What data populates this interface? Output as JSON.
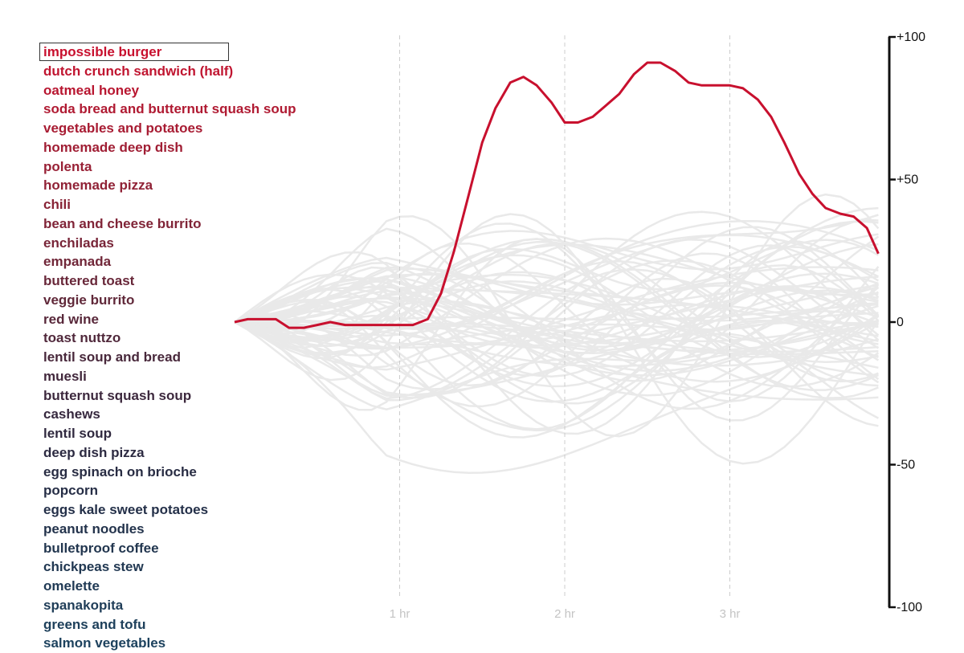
{
  "foods": [
    {
      "label": "impossible burger",
      "color": "#c8102e"
    },
    {
      "label": "dutch crunch sandwich (half)",
      "color": "#c01530"
    },
    {
      "label": "oatmeal honey",
      "color": "#b81630"
    },
    {
      "label": "soda bread and butternut squash soup",
      "color": "#b01a32"
    },
    {
      "label": "vegetables and potatoes",
      "color": "#a81c33"
    },
    {
      "label": "homemade deep dish",
      "color": "#a01e34"
    },
    {
      "label": "polenta",
      "color": "#982035"
    },
    {
      "label": "homemade pizza",
      "color": "#902236"
    },
    {
      "label": "chili",
      "color": "#882336"
    },
    {
      "label": "bean and cheese burrito",
      "color": "#802437"
    },
    {
      "label": "enchiladas",
      "color": "#782538"
    },
    {
      "label": "empanada",
      "color": "#702638"
    },
    {
      "label": "buttered toast",
      "color": "#682739"
    },
    {
      "label": "veggie burrito",
      "color": "#602839"
    },
    {
      "label": "red wine",
      "color": "#58283a"
    },
    {
      "label": "toast nuttzo",
      "color": "#50283b"
    },
    {
      "label": "lentil soup and bread",
      "color": "#48283b"
    },
    {
      "label": "muesli",
      "color": "#42283c"
    },
    {
      "label": "butternut squash soup",
      "color": "#3c283d"
    },
    {
      "label": "cashews",
      "color": "#36283e"
    },
    {
      "label": "lentil soup",
      "color": "#30293f"
    },
    {
      "label": "deep dish pizza",
      "color": "#2c2a41"
    },
    {
      "label": "egg spinach on brioche",
      "color": "#282c43"
    },
    {
      "label": "popcorn",
      "color": "#262e46"
    },
    {
      "label": "eggs kale sweet potatoes",
      "color": "#243049"
    },
    {
      "label": "peanut noodles",
      "color": "#23334c"
    },
    {
      "label": "bulletproof coffee",
      "color": "#22364f"
    },
    {
      "label": "chickpeas stew",
      "color": "#213852"
    },
    {
      "label": "omelette",
      "color": "#203a55"
    },
    {
      "label": "spanakopita",
      "color": "#1f3d58"
    },
    {
      "label": "greens and tofu",
      "color": "#1e405b"
    },
    {
      "label": "salmon vegetables",
      "color": "#1d425e"
    }
  ],
  "selected_index": 0,
  "chart_data": {
    "type": "line",
    "x_unit": "hours",
    "xlim": [
      0,
      3.9
    ],
    "ylim": [
      -100,
      100
    ],
    "x_ticks": [
      {
        "value": 1,
        "label": "1 hr"
      },
      {
        "value": 2,
        "label": "2 hr"
      },
      {
        "value": 3,
        "label": "3 hr"
      }
    ],
    "y_ticks": [
      {
        "value": 100,
        "label": "+100"
      },
      {
        "value": 50,
        "label": "+50"
      },
      {
        "value": 0,
        "label": "0"
      },
      {
        "value": -50,
        "label": "-50"
      },
      {
        "value": -100,
        "label": "-100"
      }
    ],
    "highlight_color": "#c8102e",
    "background_color": "#e9e9e9",
    "highlight_series": {
      "name": "impossible burger",
      "x": [
        0,
        0.08,
        0.17,
        0.25,
        0.33,
        0.42,
        0.5,
        0.58,
        0.67,
        0.75,
        0.83,
        0.92,
        1.0,
        1.08,
        1.17,
        1.25,
        1.33,
        1.42,
        1.5,
        1.58,
        1.67,
        1.75,
        1.83,
        1.92,
        2.0,
        2.08,
        2.17,
        2.25,
        2.33,
        2.42,
        2.5,
        2.58,
        2.67,
        2.75,
        2.83,
        2.92,
        3.0,
        3.08,
        3.17,
        3.25,
        3.33,
        3.42,
        3.5,
        3.58,
        3.67,
        3.75,
        3.83,
        3.9
      ],
      "y": [
        0,
        1,
        1,
        1,
        -2,
        -2,
        -1,
        0,
        -1,
        -1,
        -1,
        -1,
        -1,
        -1,
        1,
        10,
        25,
        45,
        63,
        75,
        84,
        86,
        83,
        77,
        70,
        70,
        72,
        76,
        80,
        87,
        91,
        91,
        88,
        84,
        83,
        83,
        83,
        82,
        78,
        72,
        63,
        52,
        45,
        40,
        38,
        37,
        33,
        24
      ]
    }
  }
}
